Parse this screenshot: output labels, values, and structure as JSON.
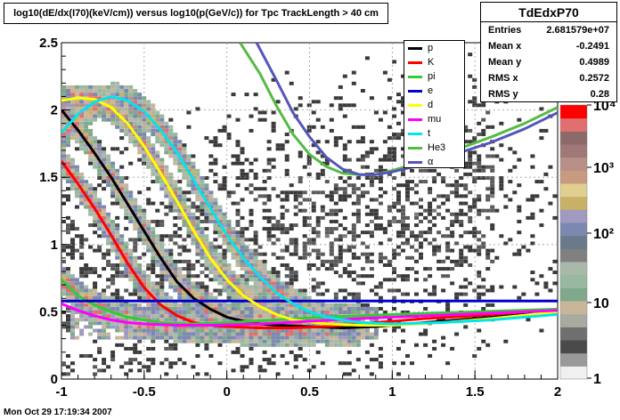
{
  "title": "log10(dE/dx(I70)(keV/cm)) versus log10(p(GeV/c)) for Tpc TrackLength > 40 cm",
  "timestamp": "Mon Oct 29 17:19:34 2007",
  "stats": {
    "name": "TdEdxP70",
    "rows": [
      {
        "label": "Entries",
        "value": "2.681579e+07"
      },
      {
        "label": "Mean x",
        "value": "-0.2491"
      },
      {
        "label": "Mean y",
        "value": "0.4989"
      },
      {
        "label": "RMS x",
        "value": "0.2572"
      },
      {
        "label": "RMS y",
        "value": "0.28"
      }
    ]
  },
  "colorbar": {
    "labels": [
      "10⁴",
      "10³",
      "10²",
      "10",
      "1"
    ],
    "colors": [
      "#f0f0f0",
      "#9a9a9a",
      "#4a4a4a",
      "#6f6f6f",
      "#a8aaa0",
      "#c9b59a",
      "#7fa88c",
      "#98b8a0",
      "#a9b9a9",
      "#808080",
      "#6a7a8a",
      "#7d88b0",
      "#a09ac0",
      "#c8b066",
      "#e0d090",
      "#c89a80",
      "#b89088",
      "#a07878",
      "#8c6a6a",
      "#e07070",
      "#ff0000"
    ]
  },
  "chart_data": {
    "type": "heatmap",
    "xlim": [
      -1,
      2
    ],
    "ylim": [
      0,
      2.5
    ],
    "x_ticks": [
      "-1",
      "-0.5",
      "0",
      "0.5",
      "1",
      "1.5",
      "2"
    ],
    "y_ticks": [
      "0",
      "0.5",
      "1",
      "1.5",
      "2",
      "2.5"
    ],
    "grid": true,
    "legend_position": "top-right",
    "series": [
      {
        "name": "p",
        "color": "#000000",
        "points": [
          [
            -1.0,
            2.0
          ],
          [
            -0.9,
            1.85
          ],
          [
            -0.8,
            1.68
          ],
          [
            -0.7,
            1.5
          ],
          [
            -0.6,
            1.3
          ],
          [
            -0.5,
            1.1
          ],
          [
            -0.4,
            0.9
          ],
          [
            -0.3,
            0.72
          ],
          [
            -0.2,
            0.6
          ],
          [
            -0.1,
            0.52
          ],
          [
            0.0,
            0.46
          ],
          [
            0.1,
            0.43
          ],
          [
            0.2,
            0.41
          ],
          [
            0.3,
            0.4
          ],
          [
            0.5,
            0.39
          ],
          [
            0.7,
            0.38
          ],
          [
            0.9,
            0.39
          ],
          [
            1.1,
            0.41
          ],
          [
            1.3,
            0.43
          ],
          [
            1.5,
            0.45
          ],
          [
            1.7,
            0.47
          ],
          [
            2.0,
            0.5
          ]
        ]
      },
      {
        "name": "K",
        "color": "#ff0000",
        "points": [
          [
            -1.0,
            1.62
          ],
          [
            -0.9,
            1.45
          ],
          [
            -0.8,
            1.27
          ],
          [
            -0.7,
            1.07
          ],
          [
            -0.6,
            0.86
          ],
          [
            -0.5,
            0.68
          ],
          [
            -0.4,
            0.55
          ],
          [
            -0.3,
            0.47
          ],
          [
            -0.2,
            0.42
          ],
          [
            -0.1,
            0.4
          ],
          [
            0.0,
            0.39
          ],
          [
            0.2,
            0.38
          ],
          [
            0.4,
            0.38
          ],
          [
            0.6,
            0.39
          ],
          [
            0.8,
            0.41
          ],
          [
            1.0,
            0.43
          ],
          [
            1.2,
            0.45
          ],
          [
            1.5,
            0.47
          ],
          [
            2.0,
            0.52
          ]
        ]
      },
      {
        "name": "pi",
        "color": "#33cc33",
        "points": [
          [
            -1.0,
            0.74
          ],
          [
            -0.9,
            0.62
          ],
          [
            -0.8,
            0.55
          ],
          [
            -0.7,
            0.5
          ],
          [
            -0.6,
            0.46
          ],
          [
            -0.5,
            0.44
          ],
          [
            -0.4,
            0.42
          ],
          [
            -0.3,
            0.41
          ],
          [
            -0.2,
            0.41
          ],
          [
            0.0,
            0.42
          ],
          [
            0.3,
            0.44
          ],
          [
            0.6,
            0.46
          ],
          [
            1.0,
            0.48
          ],
          [
            1.5,
            0.5
          ],
          [
            2.0,
            0.52
          ]
        ]
      },
      {
        "name": "e",
        "color": "#0000cc",
        "points": [
          [
            -1.0,
            0.58
          ],
          [
            -0.5,
            0.58
          ],
          [
            0.0,
            0.58
          ],
          [
            0.5,
            0.58
          ],
          [
            1.0,
            0.58
          ],
          [
            1.5,
            0.58
          ],
          [
            2.0,
            0.58
          ]
        ]
      },
      {
        "name": "d",
        "color": "#ffff00",
        "points": [
          [
            -1.0,
            2.07
          ],
          [
            -0.9,
            2.09
          ],
          [
            -0.8,
            2.08
          ],
          [
            -0.7,
            2.02
          ],
          [
            -0.6,
            1.9
          ],
          [
            -0.5,
            1.73
          ],
          [
            -0.4,
            1.53
          ],
          [
            -0.3,
            1.32
          ],
          [
            -0.2,
            1.1
          ],
          [
            -0.1,
            0.9
          ],
          [
            0.0,
            0.74
          ],
          [
            0.1,
            0.62
          ],
          [
            0.2,
            0.54
          ],
          [
            0.3,
            0.48
          ],
          [
            0.4,
            0.44
          ],
          [
            0.6,
            0.41
          ],
          [
            0.8,
            0.4
          ],
          [
            1.0,
            0.4
          ],
          [
            1.3,
            0.42
          ],
          [
            1.6,
            0.45
          ],
          [
            2.0,
            0.5
          ]
        ]
      },
      {
        "name": "mu",
        "color": "#ff00ff",
        "points": [
          [
            -1.0,
            0.56
          ],
          [
            -0.9,
            0.51
          ],
          [
            -0.8,
            0.47
          ],
          [
            -0.7,
            0.44
          ],
          [
            -0.6,
            0.42
          ],
          [
            -0.5,
            0.41
          ],
          [
            -0.3,
            0.4
          ],
          [
            -0.1,
            0.4
          ],
          [
            0.2,
            0.41
          ],
          [
            0.5,
            0.43
          ],
          [
            0.8,
            0.45
          ],
          [
            1.2,
            0.47
          ],
          [
            1.6,
            0.49
          ],
          [
            2.0,
            0.51
          ]
        ]
      },
      {
        "name": "t",
        "color": "#00e5ee",
        "points": [
          [
            -1.0,
            1.83
          ],
          [
            -0.9,
            1.97
          ],
          [
            -0.8,
            2.06
          ],
          [
            -0.7,
            2.1
          ],
          [
            -0.6,
            2.07
          ],
          [
            -0.5,
            1.99
          ],
          [
            -0.4,
            1.85
          ],
          [
            -0.3,
            1.68
          ],
          [
            -0.2,
            1.48
          ],
          [
            -0.1,
            1.27
          ],
          [
            0.0,
            1.07
          ],
          [
            0.1,
            0.9
          ],
          [
            0.2,
            0.76
          ],
          [
            0.3,
            0.64
          ],
          [
            0.4,
            0.56
          ],
          [
            0.5,
            0.5
          ],
          [
            0.6,
            0.46
          ],
          [
            0.8,
            0.42
          ],
          [
            1.0,
            0.41
          ],
          [
            1.3,
            0.42
          ],
          [
            1.6,
            0.44
          ],
          [
            2.0,
            0.48
          ]
        ]
      },
      {
        "name": "He3",
        "color": "#55bb44",
        "points": [
          [
            0.08,
            2.5
          ],
          [
            0.2,
            2.27
          ],
          [
            0.3,
            2.03
          ],
          [
            0.4,
            1.82
          ],
          [
            0.5,
            1.67
          ],
          [
            0.6,
            1.58
          ],
          [
            0.7,
            1.53
          ],
          [
            0.8,
            1.52
          ],
          [
            0.9,
            1.52
          ],
          [
            1.0,
            1.55
          ],
          [
            1.2,
            1.62
          ],
          [
            1.4,
            1.71
          ],
          [
            1.6,
            1.8
          ],
          [
            1.8,
            1.9
          ],
          [
            2.0,
            2.02
          ]
        ]
      },
      {
        "name": "α",
        "color": "#5555bb",
        "points": [
          [
            0.18,
            2.5
          ],
          [
            0.3,
            2.22
          ],
          [
            0.4,
            1.98
          ],
          [
            0.5,
            1.8
          ],
          [
            0.6,
            1.65
          ],
          [
            0.7,
            1.56
          ],
          [
            0.8,
            1.52
          ],
          [
            0.9,
            1.52
          ],
          [
            1.0,
            1.54
          ],
          [
            1.2,
            1.6
          ],
          [
            1.4,
            1.68
          ],
          [
            1.6,
            1.76
          ],
          [
            1.8,
            1.86
          ],
          [
            2.0,
            1.98
          ]
        ]
      }
    ]
  }
}
